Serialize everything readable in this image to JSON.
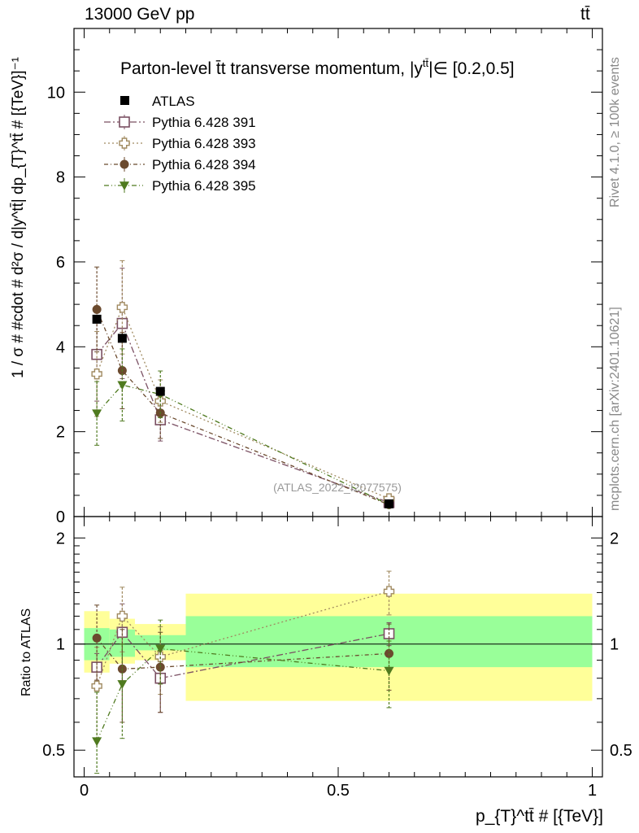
{
  "header": {
    "energy": "13000 GeV pp",
    "process": "tt̄"
  },
  "side_labels": {
    "rivet": "Rivet 4.1.0, ≥ 100k events",
    "mcplots": "mcplots.cern.ch [arXiv:2401.10621]"
  },
  "chart_data": {
    "type": "scatter",
    "title": "Parton-level t̄t transverse momentum, |y^{tt̄}| ∈ [0.2,0.5]",
    "title_text": "Parton-level t̄t transverse momentum, |y",
    "title_sup": "tt̄",
    "title_tail": "|∈ [0.2,0.5]",
    "ylabel": "1 / σ # #cdot # d²σ / d|y^{tt̄}| dp_{T}^{tt̄} # [{TeV}]⁻¹",
    "ylabel_text": "1 / σ # #cdot # d²σ / d|y^tt̄| dp_{T}^tt̄ # [{TeV}]⁻¹",
    "xlabel": "p_{T}^{tt̄} # [{TeV}]",
    "xlabel_text": "p_{T}^tt̄ # [{TeV}]",
    "ratio_ylabel": "Ratio to ATLAS",
    "watermark": "(ATLAS_2022_I2077575)",
    "xlim": [
      -0.02,
      1.02
    ],
    "ylim_main": [
      0,
      11.5
    ],
    "ylim_ratio": [
      0.42,
      2.3
    ],
    "x_ticks": [
      0,
      0.5,
      1
    ],
    "x_tick_labels": [
      "0",
      "0.5",
      "1"
    ],
    "y_ticks_main": [
      0,
      2,
      4,
      6,
      8,
      10
    ],
    "y_tick_labels_main": [
      "0",
      "2",
      "4",
      "6",
      "8",
      "10"
    ],
    "y_ticks_ratio": [
      0.5,
      1,
      2
    ],
    "y_tick_labels_ratio": [
      "0.5",
      "1",
      "2"
    ],
    "bins": [
      [
        0,
        0.05
      ],
      [
        0.05,
        0.1
      ],
      [
        0.1,
        0.2
      ],
      [
        0.2,
        1.0
      ]
    ],
    "data": {
      "name": "ATLAS",
      "x": [
        0.025,
        0.075,
        0.15,
        0.6
      ],
      "y": [
        4.65,
        4.2,
        2.95,
        0.3
      ],
      "band_inner": [
        [
          0.9,
          1.11
        ],
        [
          0.92,
          1.1
        ],
        [
          0.96,
          1.06
        ],
        [
          0.86,
          1.2
        ]
      ],
      "band_outer": [
        [
          0.83,
          1.24
        ],
        [
          0.88,
          1.18
        ],
        [
          0.9,
          1.14
        ],
        [
          0.69,
          1.39
        ]
      ]
    },
    "series": [
      {
        "name": "Pythia 6.428 391",
        "color": "#7a4f62",
        "marker": "open-square",
        "dash": "8,3,2,3",
        "x": [
          0.025,
          0.075,
          0.15,
          0.6
        ],
        "y": [
          3.82,
          4.55,
          2.28,
          0.33
        ],
        "yerr": [
          1.1,
          1.3,
          0.5,
          0.08
        ],
        "ratio": [
          0.86,
          1.08,
          0.8,
          1.07
        ]
      },
      {
        "name": "Pythia 6.428 393",
        "color": "#a08a60",
        "marker": "open-cross",
        "dash": "2,3",
        "x": [
          0.025,
          0.075,
          0.15,
          0.6
        ],
        "y": [
          3.36,
          4.93,
          2.72,
          0.42
        ],
        "yerr": [
          1.0,
          1.1,
          0.5,
          0.08
        ],
        "ratio": [
          0.76,
          1.2,
          0.92,
          1.41
        ]
      },
      {
        "name": "Pythia 6.428 394",
        "color": "#6b4a2e",
        "marker": "filled-circle",
        "dash": "5,3,1,3",
        "x": [
          0.025,
          0.075,
          0.15,
          0.6
        ],
        "y": [
          4.88,
          3.44,
          2.44,
          0.28
        ],
        "yerr": [
          1.0,
          0.9,
          0.6,
          0.06
        ],
        "ratio": [
          1.04,
          0.85,
          0.86,
          0.94
        ]
      },
      {
        "name": "Pythia 6.428 395",
        "color": "#4f7a1f",
        "marker": "filled-triangle",
        "dash": "6,3,1,3,1,3",
        "x": [
          0.025,
          0.075,
          0.15,
          0.6
        ],
        "y": [
          2.43,
          3.1,
          2.88,
          0.28
        ],
        "yerr": [
          0.75,
          0.85,
          0.55,
          0.06
        ],
        "ratio": [
          0.53,
          0.77,
          0.97,
          0.84
        ]
      }
    ],
    "series_ratio_err": [
      [
        0.08,
        0.22,
        0.16,
        0.08
      ],
      [
        0.22,
        0.25,
        0.2,
        0.2
      ],
      [
        0.25,
        0.25,
        0.22,
        0.2
      ],
      [
        0.2,
        0.23,
        0.2,
        0.18
      ]
    ]
  },
  "colors": {
    "band_inner": "#99ff99",
    "band_outer": "#ffff99",
    "data": "#000000"
  }
}
